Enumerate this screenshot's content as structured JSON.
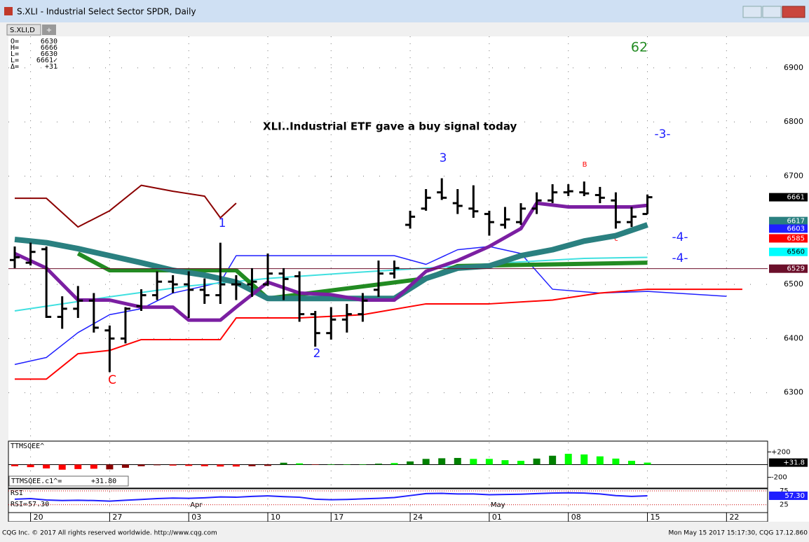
{
  "window": {
    "title": "S.XLI - Industrial Select Sector SPDR, Daily",
    "tab": "S.XLI,D",
    "tab_add": "+"
  },
  "quote_box": {
    "labels": [
      "O=",
      "H=",
      "L=",
      "L=",
      "Δ="
    ],
    "values": [
      "6630",
      "6666",
      "6630",
      "6661✓",
      "+31"
    ]
  },
  "annotations": {
    "headline": "XLI..Industrial ETF gave a buy signal today",
    "count": "62",
    "wave3": "-3-",
    "wave4a": "-4-",
    "wave4b": "-4-",
    "n1": "1",
    "n2": "2",
    "n3": "3",
    "c_big": "C",
    "b_small": "B",
    "c_small": "c"
  },
  "chart_data": {
    "type": "ohlc",
    "x": [
      -1,
      0,
      1,
      2,
      3,
      4,
      5,
      6,
      7,
      8,
      9,
      10,
      11,
      12,
      13,
      14,
      15,
      16,
      17,
      18,
      19,
      20,
      21,
      22,
      23,
      24,
      25,
      26,
      27,
      28,
      29,
      30,
      31,
      32,
      33,
      34,
      35,
      36,
      37,
      38,
      39
    ],
    "open": [
      6545,
      6540,
      6565,
      6440,
      6455,
      6470,
      6415,
      6400,
      6460,
      6480,
      6505,
      6500,
      6490,
      6480,
      6500,
      6500,
      6500,
      6520,
      6515,
      6445,
      6410,
      6435,
      6445,
      6490,
      6520,
      6610,
      6640,
      6670,
      6650,
      6640,
      6630,
      6610,
      6615,
      6640,
      6655,
      6670,
      6670,
      6665,
      6655,
      6615,
      6630
    ],
    "high": [
      6570,
      6577,
      6570,
      6478,
      6497,
      6484,
      6424,
      6458,
      6491,
      6524,
      6517,
      6524,
      6511,
      6577,
      6517,
      6530,
      6557,
      6530,
      6524,
      6451,
      6458,
      6464,
      6484,
      6544,
      6544,
      6636,
      6676,
      6696,
      6676,
      6683,
      6636,
      6643,
      6650,
      6670,
      6685,
      6685,
      6690,
      6680,
      6670,
      6643,
      6666
    ],
    "low": [
      6530,
      6535,
      6438,
      6418,
      6438,
      6411,
      6338,
      6391,
      6451,
      6471,
      6484,
      6438,
      6464,
      6464,
      6471,
      6477,
      6497,
      6471,
      6431,
      6385,
      6398,
      6411,
      6431,
      6477,
      6511,
      6603,
      6636,
      6656,
      6630,
      6623,
      6590,
      6603,
      6610,
      6630,
      6650,
      6663,
      6663,
      6650,
      6603,
      6606,
      6630
    ],
    "close": [
      6550,
      6560,
      6440,
      6455,
      6470,
      6420,
      6400,
      6455,
      6480,
      6505,
      6500,
      6490,
      6480,
      6500,
      6500,
      6505,
      6520,
      6510,
      6445,
      6410,
      6435,
      6445,
      6470,
      6520,
      6530,
      6625,
      6660,
      6660,
      6645,
      6635,
      6615,
      6620,
      6640,
      6655,
      6670,
      6672,
      6668,
      6660,
      6615,
      6625,
      6661
    ],
    "color": "#000000",
    "xlim": [
      -1.4,
      46.6
    ],
    "ylim": [
      6213,
      6958
    ],
    "yticks": [
      6300,
      6400,
      6500,
      6700,
      6800,
      6900
    ],
    "xticks": [
      {
        "value": 0,
        "label": "20"
      },
      {
        "value": 5,
        "label": "27"
      },
      {
        "value": 10,
        "label": "03"
      },
      {
        "value": 15,
        "label": "10"
      },
      {
        "value": 19,
        "label": "17"
      },
      {
        "value": 24,
        "label": "24"
      },
      {
        "value": 29,
        "label": "01"
      },
      {
        "value": 34,
        "label": "08"
      },
      {
        "value": 39,
        "label": "15"
      },
      {
        "value": 44,
        "label": "22"
      }
    ],
    "months": [
      {
        "value": 10,
        "label": "Apr"
      },
      {
        "value": 29,
        "label": "May"
      }
    ],
    "lines": [
      {
        "color": "#1f1fff",
        "width": 1.5,
        "x": [
          -1,
          1,
          3,
          5,
          7,
          9,
          11,
          12,
          13,
          17,
          21,
          23,
          25,
          27,
          29,
          31,
          33,
          36,
          39,
          44
        ],
        "values": [
          6352,
          6365,
          6411,
          6444,
          6455,
          6484,
          6497,
          6504,
          6553,
          6553,
          6553,
          6553,
          6537,
          6564,
          6570,
          6557,
          6491,
          6484,
          6487,
          6478
        ]
      },
      {
        "color": "#ff0000",
        "width": 2,
        "x": [
          -1,
          1,
          3,
          5,
          7,
          9,
          12,
          13,
          17,
          21,
          25,
          29,
          33,
          36,
          39,
          42,
          45
        ],
        "values": [
          6325,
          6325,
          6372,
          6378,
          6398,
          6398,
          6398,
          6438,
          6438,
          6444,
          6464,
          6464,
          6471,
          6484,
          6491,
          6491,
          6491
        ]
      },
      {
        "color": "#8b0000",
        "width": 2,
        "x": [
          -1,
          1,
          3,
          5,
          7,
          9,
          11,
          12,
          13
        ],
        "values": [
          6659,
          6659,
          6606,
          6636,
          6683,
          6672,
          6663,
          6623,
          6650
        ]
      },
      {
        "color": "#40e0e0",
        "width": 2,
        "x": [
          -1,
          5,
          10,
          15,
          20,
          25,
          30,
          35,
          39
        ],
        "values": [
          6451,
          6477,
          6497,
          6511,
          6521,
          6530,
          6540,
          6548,
          6550
        ]
      },
      {
        "color": "#228b22",
        "width": 6,
        "x": [
          3,
          5,
          13,
          15,
          25,
          27,
          39
        ],
        "values": [
          6557,
          6526,
          6526,
          6474,
          6511,
          6534,
          6540
        ]
      },
      {
        "color": "#2a8080",
        "width": 8,
        "x": [
          -1,
          1,
          3,
          5,
          7,
          9,
          11,
          13,
          15,
          17,
          19,
          21,
          23,
          25,
          27,
          29,
          31,
          33,
          35,
          37,
          39
        ],
        "values": [
          6583,
          6577,
          6566,
          6553,
          6540,
          6526,
          6517,
          6504,
          6474,
          6474,
          6474,
          6474,
          6474,
          6511,
          6530,
          6534,
          6553,
          6564,
          6580,
          6590,
          6610
        ]
      },
      {
        "color": "#7b1fa2",
        "width": 5,
        "x": [
          -1,
          1,
          3,
          5,
          7,
          9,
          10,
          12,
          13,
          15,
          17,
          19,
          21,
          23,
          25,
          27,
          29,
          31,
          32,
          34,
          36,
          38,
          39
        ],
        "values": [
          6557,
          6530,
          6471,
          6471,
          6458,
          6458,
          6434,
          6434,
          6458,
          6504,
          6484,
          6481,
          6471,
          6471,
          6524,
          6544,
          6570,
          6603,
          6650,
          6643,
          6643,
          6643,
          6646
        ]
      }
    ],
    "price_tags": {
      "values": [
        6661,
        6617,
        6603,
        6585,
        6560,
        6529
      ],
      "colors": [
        "#000000",
        "#2a8080",
        "#1f1fff",
        "#ff0000",
        "#00ffff",
        "#6b0f2a"
      ]
    }
  },
  "squeeze": {
    "label": "TTMSQEE^",
    "readout_label": "TTMSQEE.c1^=",
    "readout": "+31.80",
    "tag": "+31.8",
    "ylim": [
      -358,
      358
    ],
    "yticks": [
      {
        "value": 200,
        "label": "+200"
      },
      -200
    ],
    "values": [
      -25,
      -40,
      -60,
      -80,
      -70,
      -65,
      -75,
      -50,
      -25,
      -10,
      -15,
      -20,
      -25,
      -30,
      -30,
      -25,
      -20,
      30,
      20,
      -5,
      5,
      5,
      5,
      15,
      25,
      50,
      90,
      100,
      105,
      90,
      90,
      70,
      60,
      95,
      140,
      170,
      160,
      130,
      95,
      60,
      31.8
    ],
    "colors": [
      "#ff0000",
      "#ff0000",
      "#ff0000",
      "#ff0000",
      "#ff0000",
      "#ff0000",
      "#8b0000",
      "#8b0000",
      "#8b0000",
      "#8b0000",
      "#ff0000",
      "#ff0000",
      "#ff0000",
      "#ff0000",
      "#ff0000",
      "#8b0000",
      "#8b0000",
      "#008000",
      "#00ff00",
      "#ff0000",
      "#00ff00",
      "#00ff00",
      "#00ff00",
      "#008000",
      "#00ff00",
      "#008000",
      "#008000",
      "#008000",
      "#008000",
      "#00ff00",
      "#00ff00",
      "#00ff00",
      "#00ff00",
      "#008000",
      "#008000",
      "#00ff00",
      "#00ff00",
      "#00ff00",
      "#00ff00",
      "#00ff00",
      "#00ff00"
    ]
  },
  "rsi": {
    "label": "RSI",
    "readout_label": "RSI=",
    "readout": "57.30",
    "tag": "57.30",
    "ylim": [
      -1,
      80
    ],
    "yticks": [
      75,
      25
    ],
    "values": [
      45,
      47,
      42,
      40,
      41,
      40,
      38,
      41,
      44,
      47,
      49,
      48,
      50,
      53,
      52,
      55,
      57,
      54,
      52,
      45,
      43,
      44,
      46,
      48,
      51,
      58,
      65,
      66,
      64,
      64,
      61,
      62,
      63,
      65,
      67,
      68,
      67,
      64,
      58,
      55,
      57.3
    ]
  },
  "footer": {
    "left": "CQG Inc. © 2017 All rights reserved worldwide. http://www.cqg.com",
    "right": "Mon May 15 2017 15:17:30, CQG 17.12.860"
  }
}
